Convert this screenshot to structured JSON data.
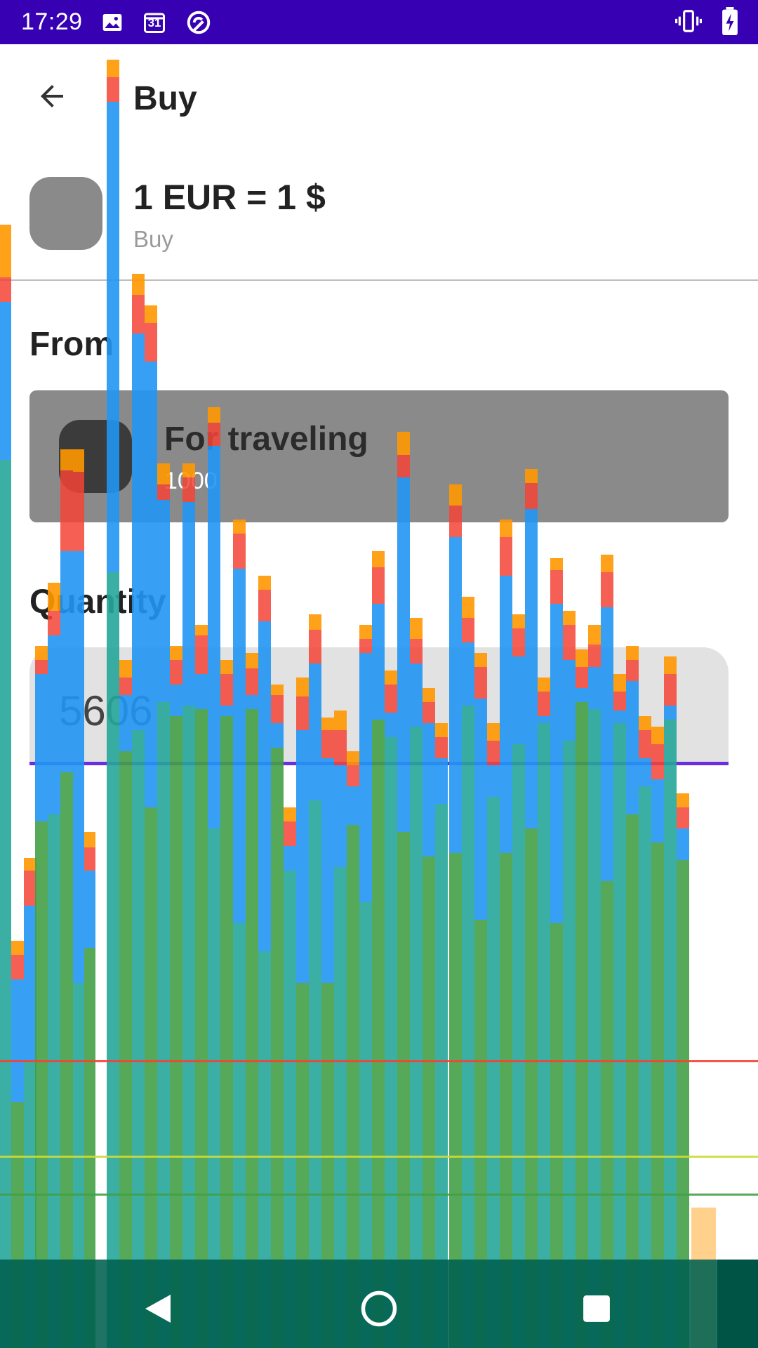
{
  "status_bar": {
    "time": "17:29",
    "calendar_day": "31",
    "icons": [
      "image-icon",
      "calendar-icon",
      "sync-icon",
      "vibrate-icon",
      "battery-charging-icon"
    ]
  },
  "app_bar": {
    "title": "Buy",
    "back_icon": "arrow-back-icon"
  },
  "rate": {
    "title": "1 EUR = 1 $",
    "subtitle": "Buy"
  },
  "from": {
    "label": "From",
    "account_name": "For traveling",
    "account_amount": "1000"
  },
  "quantity": {
    "label": "Quantity",
    "value": "5606"
  },
  "nav_bar": {
    "icons": [
      "back-triangle-icon",
      "home-circle-icon",
      "recents-square-icon"
    ]
  },
  "colors": {
    "status_bar": "#3700b3",
    "accent_underline": "#6d2ee0",
    "overlay_green": "#43a047",
    "overlay_teal": "#26a69a",
    "overlay_blue": "#2196f3",
    "overlay_red": "#f44336",
    "overlay_orange": "#ff9800"
  }
}
